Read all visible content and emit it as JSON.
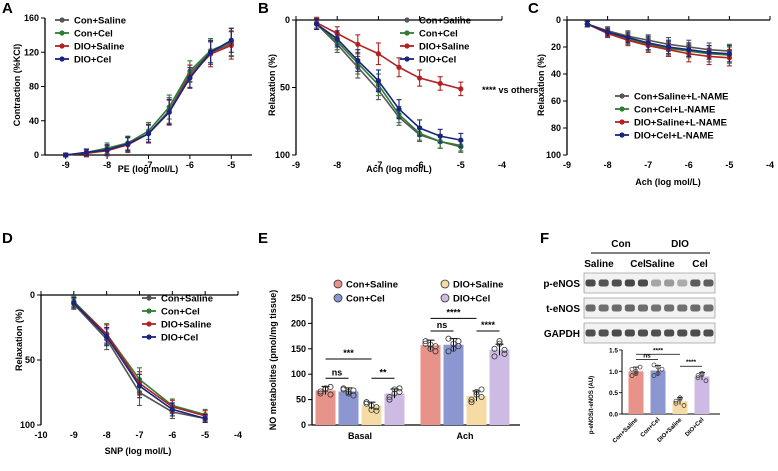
{
  "colors": {
    "con_saline": "#555555",
    "con_cel": "#2f7d32",
    "dio_saline": "#b22222",
    "dio_cel": "#1a237e",
    "bar_con_saline": "#e8938a",
    "bar_con_cel": "#8c96d1",
    "bar_dio_saline": "#f5dba4",
    "bar_dio_cel": "#cdbbe3"
  },
  "chart_data": [
    {
      "panel": "A",
      "type": "line",
      "xlabel": "PE (log mol/L)",
      "ylabel": "Contraction (%KCl)",
      "xlim": [
        -9.5,
        -4.5
      ],
      "ylim": [
        0,
        160
      ],
      "y_inverted": false,
      "xticks": [
        -9,
        -8,
        -7,
        -6,
        -5
      ],
      "yticks": [
        0,
        40,
        80,
        120,
        160
      ],
      "legend_position": "top-left",
      "x": [
        -9,
        -8.5,
        -8,
        -7.5,
        -7,
        -6.5,
        -6,
        -5.5,
        -5
      ],
      "series": [
        {
          "name": "Con+Saline",
          "color_key": "con_saline",
          "values": [
            0,
            2,
            6,
            12,
            25,
            52,
            95,
            120,
            130
          ],
          "errors": [
            2,
            4,
            5,
            8,
            10,
            15,
            10,
            12,
            15
          ]
        },
        {
          "name": "Con+Cel",
          "color_key": "con_cel",
          "values": [
            0,
            3,
            8,
            14,
            28,
            56,
            98,
            122,
            132
          ],
          "errors": [
            2,
            4,
            6,
            8,
            10,
            14,
            12,
            14,
            16
          ]
        },
        {
          "name": "DIO+Saline",
          "color_key": "dio_saline",
          "values": [
            0,
            2,
            5,
            12,
            25,
            50,
            92,
            118,
            128
          ],
          "errors": [
            2,
            4,
            6,
            9,
            11,
            14,
            13,
            15,
            16
          ]
        },
        {
          "name": "DIO+Cel",
          "color_key": "dio_cel",
          "values": [
            0,
            3,
            6,
            13,
            25,
            50,
            90,
            120,
            134
          ],
          "errors": [
            2,
            4,
            6,
            8,
            10,
            15,
            12,
            14,
            14
          ]
        }
      ]
    },
    {
      "panel": "B",
      "type": "line",
      "xlabel": "Ach (log mol/L)",
      "ylabel": "Relaxation (%)",
      "xlim": [
        -9,
        -4
      ],
      "ylim": [
        0,
        100
      ],
      "y_inverted": true,
      "xticks": [
        -9,
        -8,
        -7,
        -6,
        -5,
        -4
      ],
      "yticks": [
        0,
        50,
        100
      ],
      "legend_position": "top-right",
      "annotation": "**** vs others",
      "x": [
        -8.5,
        -8,
        -7.5,
        -7,
        -6.5,
        -6,
        -5.5,
        -5
      ],
      "series": [
        {
          "name": "Con+Saline",
          "color_key": "con_saline",
          "values": [
            3,
            18,
            35,
            52,
            72,
            85,
            90,
            94
          ],
          "errors": [
            4,
            6,
            8,
            7,
            6,
            5,
            5,
            4
          ]
        },
        {
          "name": "Con+Cel",
          "color_key": "con_cel",
          "values": [
            3,
            16,
            32,
            48,
            70,
            84,
            90,
            93
          ],
          "errors": [
            4,
            6,
            8,
            8,
            6,
            5,
            5,
            4
          ]
        },
        {
          "name": "DIO+Saline",
          "color_key": "dio_saline",
          "values": [
            2,
            10,
            18,
            25,
            35,
            43,
            47,
            51
          ],
          "errors": [
            4,
            5,
            7,
            8,
            7,
            6,
            5,
            5
          ]
        },
        {
          "name": "DIO+Cel",
          "color_key": "dio_cel",
          "values": [
            3,
            14,
            30,
            45,
            66,
            80,
            86,
            89
          ],
          "errors": [
            4,
            6,
            8,
            8,
            7,
            6,
            5,
            5
          ]
        }
      ]
    },
    {
      "panel": "C",
      "type": "line",
      "xlabel": "Ach (log mol/L)",
      "ylabel": "Relaxation (%)",
      "xlim": [
        -9,
        -4
      ],
      "ylim": [
        0,
        100
      ],
      "y_inverted": true,
      "xticks": [
        -9,
        -8,
        -7,
        -6,
        -5,
        -4
      ],
      "yticks": [
        0,
        20,
        40,
        60,
        80,
        100
      ],
      "legend_position": "center-right",
      "x": [
        -8.5,
        -8,
        -7.5,
        -7,
        -6.5,
        -6,
        -5.5,
        -5
      ],
      "series": [
        {
          "name": "Con+Saline+L-NAME",
          "color_key": "con_saline",
          "values": [
            3,
            8,
            12,
            15,
            18,
            20,
            22,
            23
          ],
          "errors": [
            2,
            3,
            4,
            4,
            5,
            5,
            5,
            5
          ]
        },
        {
          "name": "Con+Cel+L-NAME",
          "color_key": "con_cel",
          "values": [
            3,
            9,
            14,
            18,
            21,
            23,
            25,
            26
          ],
          "errors": [
            2,
            3,
            4,
            5,
            5,
            5,
            6,
            6
          ]
        },
        {
          "name": "DIO+Saline+L-NAME",
          "color_key": "dio_saline",
          "values": [
            3,
            10,
            15,
            19,
            22,
            25,
            27,
            28
          ],
          "errors": [
            2,
            3,
            4,
            5,
            5,
            6,
            6,
            6
          ]
        },
        {
          "name": "DIO+Cel+L-NAME",
          "color_key": "dio_cel",
          "values": [
            3,
            9,
            13,
            17,
            20,
            22,
            24,
            25
          ],
          "errors": [
            2,
            3,
            4,
            5,
            5,
            5,
            5,
            6
          ]
        }
      ]
    },
    {
      "panel": "D",
      "type": "line",
      "xlabel": "SNP (log mol/L)",
      "ylabel": "Relaxation (%)",
      "xlim": [
        -10,
        -4
      ],
      "ylim": [
        0,
        100
      ],
      "y_inverted": true,
      "xticks": [
        -10,
        -9,
        -8,
        -7,
        -6,
        -5,
        -4
      ],
      "yticks": [
        0,
        50,
        100
      ],
      "legend_position": "top-right",
      "x": [
        -9,
        -8,
        -7,
        -6,
        -5
      ],
      "series": [
        {
          "name": "Con+Saline",
          "color_key": "con_saline",
          "values": [
            7,
            34,
            75,
            90,
            95
          ],
          "errors": [
            4,
            8,
            10,
            5,
            3
          ]
        },
        {
          "name": "Con+Cel",
          "color_key": "con_cel",
          "values": [
            5,
            30,
            65,
            85,
            92
          ],
          "errors": [
            4,
            8,
            9,
            5,
            4
          ]
        },
        {
          "name": "DIO+Saline",
          "color_key": "dio_saline",
          "values": [
            6,
            30,
            68,
            86,
            93
          ],
          "errors": [
            4,
            7,
            9,
            5,
            4
          ]
        },
        {
          "name": "DIO+Cel",
          "color_key": "dio_cel",
          "values": [
            6,
            32,
            70,
            88,
            95
          ],
          "errors": [
            4,
            7,
            9,
            5,
            3
          ]
        }
      ]
    },
    {
      "panel": "E",
      "type": "bar",
      "ylabel": "NO metabolites (pmol/mg tissue)",
      "ylim": [
        0,
        250
      ],
      "yticks": [
        0,
        50,
        100,
        150,
        200,
        250
      ],
      "categories": [
        "Basal",
        "Ach"
      ],
      "series": [
        {
          "name": "Con+Saline",
          "color_key": "bar_con_saline",
          "values": [
            68,
            157
          ],
          "errors": [
            8,
            10
          ]
        },
        {
          "name": "Con+Cel",
          "color_key": "bar_con_cel",
          "values": [
            66,
            158
          ],
          "errors": [
            7,
            12
          ]
        },
        {
          "name": "DIO+Saline",
          "color_key": "bar_dio_saline",
          "values": [
            38,
            57
          ],
          "errors": [
            7,
            10
          ]
        },
        {
          "name": "DIO+Cel",
          "color_key": "bar_dio_cel",
          "values": [
            62,
            148
          ],
          "errors": [
            9,
            11
          ]
        }
      ],
      "points": [
        [
          [
            62,
            70,
            75,
            66,
            72,
            60
          ],
          [
            70,
            62,
            58,
            72,
            65,
            68
          ],
          [
            42,
            30,
            35,
            45,
            38,
            28
          ],
          [
            55,
            70,
            65,
            50,
            62,
            72
          ]
        ],
        [
          [
            160,
            150,
            145,
            165,
            158,
            155
          ],
          [
            170,
            150,
            165,
            145,
            160,
            155
          ],
          [
            50,
            65,
            70,
            45,
            60,
            55
          ],
          [
            150,
            160,
            140,
            135,
            165,
            148
          ]
        ]
      ],
      "significance": [
        {
          "label": "ns",
          "group": 0,
          "pair": [
            0,
            1
          ],
          "y": 92
        },
        {
          "label": "**",
          "group": 0,
          "pair": [
            2,
            3
          ],
          "y": 92
        },
        {
          "label": "***",
          "group": 0,
          "pair": [
            0,
            2
          ],
          "y": 130
        },
        {
          "label": "ns",
          "group": 1,
          "pair": [
            0,
            1
          ],
          "y": 185
        },
        {
          "label": "****",
          "group": 1,
          "pair": [
            2,
            3
          ],
          "y": 185
        },
        {
          "label": "****",
          "group": 1,
          "pair": [
            0,
            2
          ],
          "y": 210
        }
      ]
    },
    {
      "panel": "F",
      "type": "bar",
      "ylabel": "p-eNOS/t-eNOS (AU)",
      "ylim": [
        0,
        1.5
      ],
      "yticks": [
        0.0,
        0.5,
        1.0,
        1.5
      ],
      "categories": [
        "Con+Saline",
        "Con+Cel",
        "DIO+Saline",
        "DIO+Cel"
      ],
      "color_keys": [
        "bar_con_saline",
        "bar_con_cel",
        "bar_dio_saline",
        "bar_dio_cel"
      ],
      "values": [
        1.0,
        1.02,
        0.3,
        0.88
      ],
      "errors": [
        0.1,
        0.12,
        0.08,
        0.09
      ],
      "points": [
        [
          1.05,
          0.95,
          1.1,
          0.9,
          1.0
        ],
        [
          1.15,
          0.95,
          1.05,
          0.9,
          1.1
        ],
        [
          0.25,
          0.35,
          0.2,
          0.3,
          0.38
        ],
        [
          0.85,
          0.95,
          0.78,
          0.9,
          0.92
        ]
      ],
      "significance": [
        {
          "label": "ns",
          "pair": [
            0,
            1
          ],
          "y": 1.28
        },
        {
          "label": "****",
          "pair": [
            2,
            3
          ],
          "y": 1.12
        },
        {
          "label": "****",
          "pair": [
            0,
            2
          ],
          "y": 1.4
        }
      ]
    }
  ],
  "blot": {
    "groups": [
      "Con",
      "DIO"
    ],
    "subgroups": [
      "Saline",
      "Cel",
      "Saline",
      "Cel"
    ],
    "rows": [
      "p-eNOS",
      "t-eNOS",
      "GAPDH"
    ],
    "lanes": 10,
    "intensities": [
      [
        0.9,
        0.85,
        0.88,
        0.92,
        0.9,
        0.45,
        0.5,
        0.42,
        0.82,
        0.8
      ],
      [
        0.75,
        0.72,
        0.74,
        0.76,
        0.73,
        0.7,
        0.72,
        0.71,
        0.74,
        0.73
      ],
      [
        0.88,
        0.87,
        0.9,
        0.89,
        0.88,
        0.87,
        0.89,
        0.88,
        0.9,
        0.89
      ]
    ]
  }
}
